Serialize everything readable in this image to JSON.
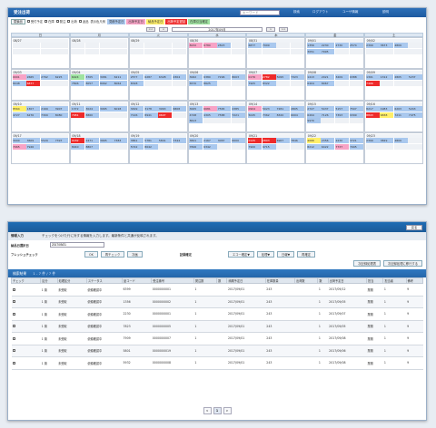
{
  "top": {
    "app_title": "受注出荷",
    "search_placeholder": "キーワード",
    "nav": [
      "検索",
      "ログアウト",
      "ユーザ情報",
      "説明"
    ],
    "tool_button": "閉鎖品",
    "filters": [
      "受付予定",
      "在庫",
      "発注",
      "出荷",
      "返品"
    ],
    "legend_label": "表示色凡例",
    "legend": [
      {
        "label": "見積予定日",
        "color": "#a9c8ee"
      },
      {
        "label": "出荷予定日",
        "color": "#f7a3c6"
      },
      {
        "label": "納品予定日",
        "color": "#ffef6a"
      },
      {
        "label": "出荷予定遅延",
        "color": "#ee2a2a"
      },
      {
        "label": "在庫引当確定",
        "color": "#9fe3a1"
      }
    ],
    "month_prev": "<<",
    "month_prev2": "<",
    "month_label": "2017年09月",
    "month_next": ">",
    "month_next2": ">>",
    "weekdays": [
      "日",
      "月",
      "火",
      "水",
      "木",
      "金",
      "土"
    ]
  },
  "calendar": [
    [
      {
        "date": "08/27",
        "cells": []
      },
      {
        "date": "08/28",
        "cells": []
      },
      {
        "date": "08/29",
        "cells": []
      },
      {
        "date": "08/30",
        "cells": [
          [
            "8232",
            "pink"
          ],
          [
            "6780",
            "pink"
          ],
          [
            "2823",
            "blue"
          ]
        ]
      },
      {
        "date": "08/31",
        "cells": [
          [
            "6877",
            "blue"
          ],
          [
            "7909",
            "blue"
          ]
        ]
      },
      {
        "date": "09/01",
        "cells": [
          [
            "1356",
            "blue"
          ],
          [
            "2230",
            "blue"
          ],
          [
            "2730",
            "blue"
          ],
          [
            "2574",
            "blue"
          ],
          [
            "3051",
            "blue"
          ],
          [
            "7995",
            "blue"
          ]
        ]
      },
      {
        "date": "09/02",
        "cells": [
          [
            "2399",
            "blue"
          ],
          [
            "3673",
            "blue"
          ],
          [
            "4809",
            "blue"
          ]
        ]
      }
    ],
    [
      {
        "date": "09/03",
        "cells": [
          [
            "0001",
            "pink"
          ],
          [
            "2665",
            "blue"
          ],
          [
            "2792",
            "blue"
          ],
          [
            "6225",
            "blue"
          ],
          [
            "8048",
            "blue"
          ],
          [
            "6877",
            "red"
          ]
        ]
      },
      {
        "date": "09/04",
        "cells": [
          [
            "6424",
            "green"
          ],
          [
            "3705",
            "blue"
          ],
          [
            "3081",
            "blue"
          ],
          [
            "6211",
            "blue"
          ],
          [
            "7896",
            "blue"
          ],
          [
            "8057",
            "blue"
          ],
          [
            "8062",
            "blue"
          ],
          [
            "8064",
            "blue"
          ]
        ]
      },
      {
        "date": "09/05",
        "cells": [
          [
            "2577",
            "blue"
          ],
          [
            "6287",
            "blue"
          ],
          [
            "6328",
            "blue"
          ],
          [
            "2304",
            "blue"
          ],
          [
            "8328",
            "blue"
          ]
        ]
      },
      {
        "date": "09/06",
        "cells": [
          [
            "3062",
            "blue"
          ],
          [
            "6380",
            "blue"
          ],
          [
            "7296",
            "blue"
          ],
          [
            "8003",
            "blue"
          ],
          [
            "6570",
            "blue"
          ],
          [
            "8625",
            "blue"
          ]
        ]
      },
      {
        "date": "09/07",
        "cells": [
          [
            "0176",
            "pink"
          ],
          [
            "2782",
            "red"
          ],
          [
            "5095",
            "blue"
          ],
          [
            "7323",
            "blue"
          ],
          [
            "7905",
            "blue"
          ],
          [
            "8322",
            "blue"
          ]
        ]
      },
      {
        "date": "09/08",
        "cells": [
          [
            "1413",
            "blue"
          ],
          [
            "2021",
            "blue"
          ],
          [
            "3209",
            "blue"
          ],
          [
            "6388",
            "blue"
          ],
          [
            "6404",
            "blue"
          ],
          [
            "8067",
            "blue"
          ]
        ]
      },
      {
        "date": "09/09",
        "cells": [
          [
            "1301",
            "blue"
          ],
          [
            "1312",
            "blue"
          ],
          [
            "2805",
            "blue"
          ],
          [
            "5237",
            "blue"
          ],
          [
            "7406",
            "red"
          ]
        ]
      }
    ],
    [
      {
        "date": "09/10",
        "cells": [
          [
            "8564",
            "yellow"
          ],
          [
            "1307",
            "blue"
          ],
          [
            "2169",
            "blue"
          ],
          [
            "3907",
            "blue"
          ],
          [
            "4727",
            "blue"
          ],
          [
            "6276",
            "blue"
          ],
          [
            "7309",
            "blue"
          ],
          [
            "8080",
            "blue"
          ]
        ]
      },
      {
        "date": "09/11",
        "cells": [
          [
            "1372",
            "blue"
          ],
          [
            "3024",
            "blue"
          ],
          [
            "3065",
            "blue"
          ],
          [
            "6018",
            "blue"
          ],
          [
            "7081",
            "red"
          ],
          [
            "8860",
            "blue"
          ]
        ]
      },
      {
        "date": "09/12",
        "cells": [
          [
            "3499",
            "blue"
          ],
          [
            "3178",
            "blue"
          ],
          [
            "3963",
            "blue"
          ],
          [
            "6808",
            "blue"
          ],
          [
            "7126",
            "blue"
          ],
          [
            "8941",
            "blue"
          ],
          [
            "9697",
            "red"
          ]
        ]
      },
      {
        "date": "09/13",
        "cells": [
          [
            "3005",
            "blue"
          ],
          [
            "6681",
            "pink"
          ],
          [
            "7565",
            "blue"
          ],
          [
            "2385",
            "blue"
          ],
          [
            "4748",
            "blue"
          ],
          [
            "4305",
            "blue"
          ],
          [
            "7588",
            "blue"
          ],
          [
            "7221",
            "blue"
          ],
          [
            "8613",
            "blue"
          ]
        ]
      },
      {
        "date": "09/14",
        "cells": [
          [
            "0904",
            "pink"
          ],
          [
            "5023",
            "blue"
          ],
          [
            "7281",
            "blue"
          ],
          [
            "2805",
            "blue"
          ],
          [
            "5045",
            "blue"
          ],
          [
            "7362",
            "blue"
          ],
          [
            "8320",
            "blue"
          ],
          [
            "6004",
            "blue"
          ]
        ]
      },
      {
        "date": "09/15",
        "cells": [
          [
            "2727",
            "blue"
          ],
          [
            "5437",
            "blue"
          ],
          [
            "5157",
            "blue"
          ],
          [
            "7507",
            "blue"
          ],
          [
            "6494",
            "blue"
          ],
          [
            "7126",
            "blue"
          ],
          [
            "7393",
            "blue"
          ],
          [
            "9399",
            "blue"
          ],
          [
            "9970",
            "blue"
          ]
        ]
      },
      {
        "date": "09/16",
        "cells": [
          [
            "8217",
            "blue"
          ],
          [
            "1983",
            "blue"
          ],
          [
            "6203",
            "blue"
          ],
          [
            "5243",
            "blue"
          ],
          [
            "8843",
            "red"
          ],
          [
            "6838",
            "yellow"
          ],
          [
            "7211",
            "blue"
          ],
          [
            "7475",
            "blue"
          ]
        ]
      }
    ],
    [
      {
        "date": "09/17",
        "cells": [
          [
            "3000",
            "blue"
          ],
          [
            "3609",
            "blue"
          ],
          [
            "5529",
            "blue"
          ],
          [
            "7397",
            "blue"
          ],
          [
            "7965",
            "pink"
          ],
          [
            "7926",
            "blue"
          ]
        ]
      },
      {
        "date": "09/18",
        "cells": [
          [
            "0182",
            "red"
          ],
          [
            "2471",
            "blue"
          ],
          [
            "3665",
            "blue"
          ],
          [
            "7383",
            "blue"
          ],
          [
            "8040",
            "blue"
          ],
          [
            "8807",
            "blue"
          ]
        ]
      },
      {
        "date": "09/19",
        "cells": [
          [
            "3861",
            "blue"
          ],
          [
            "5781",
            "blue"
          ],
          [
            "5801",
            "blue"
          ],
          [
            "7344",
            "blue"
          ],
          [
            "5742",
            "blue"
          ],
          [
            "8042",
            "blue"
          ]
        ]
      },
      {
        "date": "09/20",
        "cells": [
          [
            "3821",
            "blue"
          ],
          [
            "2167",
            "blue"
          ],
          [
            "3067",
            "blue"
          ],
          [
            "6000",
            "blue"
          ],
          [
            "7826",
            "blue"
          ],
          [
            "6342",
            "blue"
          ]
        ]
      },
      {
        "date": "09/21",
        "cells": [
          [
            "0125",
            "red"
          ],
          [
            "2803",
            "red"
          ],
          [
            "6967",
            "blue"
          ],
          [
            "7846",
            "blue"
          ],
          [
            "7900",
            "blue"
          ],
          [
            "9715",
            "blue"
          ]
        ]
      },
      {
        "date": "09/22",
        "cells": [
          [
            "4066",
            "yellow"
          ],
          [
            "2356",
            "blue"
          ],
          [
            "2230",
            "blue"
          ],
          [
            "3721",
            "blue"
          ],
          [
            "8212",
            "blue"
          ],
          [
            "6422",
            "blue"
          ],
          [
            "7737",
            "pink"
          ],
          [
            "7995",
            "blue"
          ]
        ]
      },
      {
        "date": "09/23",
        "cells": [
          [
            "2399",
            "blue"
          ],
          [
            "3829",
            "blue"
          ],
          [
            "4809",
            "blue"
          ]
        ]
      }
    ]
  ],
  "lower": {
    "back_label": "戻る",
    "info_title": "情報入力",
    "info_message": "チェックをつけた行に対する情報を入力します。最新条件と共通が反映されます。",
    "date_label": "納品日選択日",
    "date_value": "2017/09/21",
    "refresh_label": "フレッシュチェック",
    "ok_label": "OK",
    "recheck_label": "再チェック",
    "next_label": "次画",
    "kind_label": "記録確定",
    "dropdowns": [
      "エコー確定▼",
      "処理▼",
      "日報▼",
      "再確定"
    ],
    "extra_buttons": [
      "次記録処理表",
      "次記録処理に移行する"
    ],
    "results_title": "検索結果",
    "results_count": "1 - 7 件 / 7 件",
    "columns": [
      "チェック",
      "区分",
      "処理区分",
      "ステータス",
      "品コード",
      "受注番号",
      "発注数",
      "数",
      "納期予定日",
      "在庫数量",
      "出荷数",
      "数",
      "出荷予定日",
      "担当",
      "担当者",
      "備考"
    ],
    "rows": [
      [
        "",
        "1 普",
        "未受取",
        "依頼確認中",
        "6399",
        "0000000001",
        "1",
        "",
        "2017/09/01",
        "243",
        "",
        "1",
        "2017/09/12",
        "業務",
        "1",
        "9"
      ],
      [
        "",
        "1 普",
        "未受取",
        "依頼確認中",
        "1356",
        "0000000002",
        "1",
        "",
        "2017/09/01",
        "243",
        "",
        "1",
        "2017/09/05",
        "業務",
        "1",
        "9"
      ],
      [
        "",
        "1 普",
        "未受取",
        "依頼確認中",
        "2230",
        "0000000001",
        "1",
        "",
        "2017/09/01",
        "243",
        "",
        "1",
        "2017/09/07",
        "業務",
        "1",
        "9"
      ],
      [
        "",
        "1 普",
        "未受取",
        "依頼確認中",
        "7823",
        "0000000005",
        "1",
        "",
        "2017/09/01",
        "243",
        "",
        "1",
        "2017/09/05",
        "業務",
        "1",
        "9"
      ],
      [
        "",
        "1 普",
        "未受取",
        "依頼確認中",
        "7909",
        "0000000007",
        "1",
        "",
        "2017/09/01",
        "243",
        "",
        "1",
        "2017/09/08",
        "業務",
        "1",
        "9"
      ],
      [
        "",
        "1 普",
        "未受取",
        "依頼確認中",
        "5801",
        "0000000019",
        "1",
        "",
        "2017/09/01",
        "243",
        "",
        "1",
        "2017/09/06",
        "業務",
        "1",
        "9"
      ],
      [
        "",
        "1 普",
        "未受取",
        "依頼確認中",
        "5932",
        "0000000008",
        "1",
        "",
        "2017/09/01",
        "243",
        "",
        "1",
        "2017/09/08",
        "業務",
        "1",
        "9"
      ]
    ],
    "pager": [
      "<",
      "1",
      ">"
    ]
  }
}
